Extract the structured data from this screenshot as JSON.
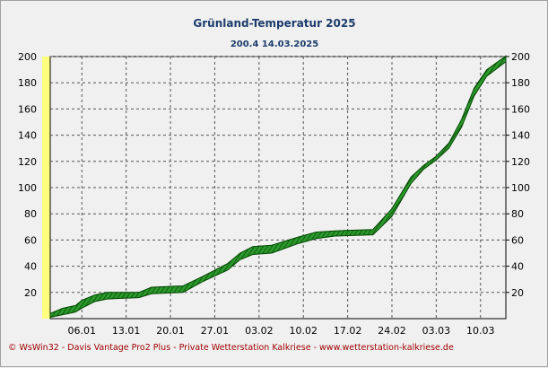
{
  "chart_data": {
    "type": "area",
    "title": "Grünland-Temperatur  2025",
    "subtitle": "200.4  14.03.2025",
    "ylim": [
      0,
      200
    ],
    "yticks_left": [
      "200",
      "180",
      "160",
      "140",
      "120",
      "100",
      "80",
      "60",
      "40",
      "20"
    ],
    "yticks_right": [
      "200",
      "180",
      "160",
      "140",
      "120",
      "100",
      "80",
      "60",
      "40",
      "20"
    ],
    "xlim": [
      1,
      73
    ],
    "xticks": [
      {
        "label": "06.01",
        "day": 6
      },
      {
        "label": "13.01",
        "day": 13
      },
      {
        "label": "20.01",
        "day": 20
      },
      {
        "label": "27.01",
        "day": 27
      },
      {
        "label": "03.02",
        "day": 34
      },
      {
        "label": "10.02",
        "day": 41
      },
      {
        "label": "17.02",
        "day": 48
      },
      {
        "label": "24.02",
        "day": 55
      },
      {
        "label": "03.03",
        "day": 62
      },
      {
        "label": "10.03",
        "day": 69
      }
    ],
    "grid": true,
    "colors": {
      "band_fill": "#2a9a2a",
      "band_edge": "#004400",
      "hatch": "#0d4a0d",
      "axis_bar": "#ffff80",
      "title": "#1c3c6c",
      "footer": "#a00000"
    },
    "series": [
      {
        "upper": [
          [
            1,
            4
          ],
          [
            3,
            8
          ],
          [
            5,
            10
          ],
          [
            6,
            14
          ],
          [
            8,
            18
          ],
          [
            10,
            20
          ],
          [
            15,
            20
          ],
          [
            17,
            24
          ],
          [
            22,
            25
          ],
          [
            25,
            32
          ],
          [
            29,
            42
          ],
          [
            31,
            50
          ],
          [
            33,
            55
          ],
          [
            36,
            56
          ],
          [
            40,
            62
          ],
          [
            43,
            66
          ],
          [
            46,
            67
          ],
          [
            52,
            68
          ],
          [
            55,
            84
          ],
          [
            58,
            108
          ],
          [
            60,
            117
          ],
          [
            62,
            124
          ],
          [
            64,
            134
          ],
          [
            66,
            152
          ],
          [
            68,
            176
          ],
          [
            70,
            190
          ],
          [
            73,
            200.4
          ]
        ],
        "lower": [
          [
            1,
            1
          ],
          [
            3,
            3
          ],
          [
            5,
            5
          ],
          [
            6,
            8
          ],
          [
            8,
            13
          ],
          [
            10,
            15
          ],
          [
            15,
            16
          ],
          [
            17,
            19
          ],
          [
            22,
            20
          ],
          [
            25,
            28
          ],
          [
            29,
            37
          ],
          [
            31,
            45
          ],
          [
            33,
            49
          ],
          [
            36,
            50
          ],
          [
            40,
            57
          ],
          [
            43,
            61
          ],
          [
            46,
            63
          ],
          [
            52,
            64
          ],
          [
            55,
            78
          ],
          [
            58,
            103
          ],
          [
            60,
            114
          ],
          [
            62,
            121
          ],
          [
            64,
            130
          ],
          [
            66,
            146
          ],
          [
            68,
            170
          ],
          [
            70,
            185
          ],
          [
            73,
            196
          ]
        ]
      }
    ]
  },
  "footer": {
    "text": "© WsWin32   -   Davis Vantage Pro2 Plus   -   Private Wetterstation Kalkriese - www.wetterstation-kalkriese.de"
  }
}
